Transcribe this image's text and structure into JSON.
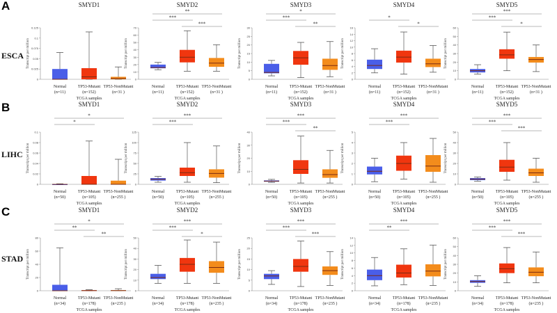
{
  "labels": {
    "ylabel": "Transcript per million",
    "xlabel": "TCGA samples",
    "groups": [
      "Normal",
      "TP53-Mutant",
      "TP53-NonMutant"
    ]
  },
  "colors": {
    "normal": "#4a5ee8",
    "mutant": "#f0360f",
    "nonmutant": "#f38c1c",
    "median": "#7a2a12",
    "whisker": "#555555",
    "line": "#777777"
  },
  "rows": [
    {
      "letter": "A",
      "cancer": "ESCA",
      "n": [
        "(n=11)",
        "(n=152)",
        "(n=31 )"
      ]
    },
    {
      "letter": "B",
      "cancer": "LIHC",
      "n": [
        "(n=50)",
        "(n=105)",
        "(n=255 )"
      ]
    },
    {
      "letter": "C",
      "cancer": "STAD",
      "n": [
        "(n=34)",
        "(n=178)",
        "(n=235 )"
      ]
    }
  ],
  "chart_data": [
    {
      "type": "box",
      "row": 0,
      "title": "SMYD1",
      "ylim": [
        0,
        0.125
      ],
      "ticks": [
        0,
        0.025,
        0.05,
        0.075,
        0.1,
        0.125
      ],
      "boxes": [
        [
          0,
          0,
          0,
          0.025,
          0.065
        ],
        [
          0,
          0,
          0.006,
          0.027,
          0.115
        ],
        [
          0,
          0,
          0.002,
          0.006,
          0.03
        ]
      ],
      "sig": []
    },
    {
      "type": "box",
      "row": 0,
      "title": "SMYD2",
      "ylim": [
        0,
        70
      ],
      "ticks": [
        0,
        10,
        20,
        30,
        40,
        50,
        60,
        70
      ],
      "boxes": [
        [
          13,
          15,
          16,
          20,
          23
        ],
        [
          11,
          23,
          30,
          40,
          66
        ],
        [
          11,
          17,
          22,
          29,
          47
        ]
      ],
      "sig": [
        [
          0,
          1,
          "***"
        ],
        [
          0,
          2,
          "**"
        ],
        [
          1,
          2,
          "***"
        ]
      ]
    },
    {
      "type": "box",
      "row": 0,
      "title": "SMYD3",
      "ylim": [
        0,
        30
      ],
      "ticks": [
        0,
        5,
        10,
        15,
        20,
        25,
        30
      ],
      "boxes": [
        [
          2,
          3.5,
          4,
          9,
          11
        ],
        [
          1,
          8.5,
          12.5,
          16.5,
          21.5
        ],
        [
          1.5,
          5.5,
          8,
          12,
          22
        ]
      ],
      "sig": [
        [
          0,
          1,
          "***"
        ],
        [
          0,
          2,
          "*"
        ],
        [
          1,
          2,
          "**"
        ]
      ]
    },
    {
      "type": "box",
      "row": 0,
      "title": "SMYD4",
      "ylim": [
        0,
        16
      ],
      "ticks": [
        0,
        2,
        4,
        6,
        8,
        10,
        12,
        14,
        16
      ],
      "boxes": [
        [
          2,
          3.2,
          4.3,
          6.1,
          9.5
        ],
        [
          1.6,
          5.2,
          6.9,
          8.9,
          14.7
        ],
        [
          2.2,
          3.8,
          4.8,
          6.4,
          10.5
        ]
      ],
      "sig": [
        [
          0,
          1,
          "*"
        ],
        [
          1,
          2,
          "*"
        ]
      ]
    },
    {
      "type": "box",
      "row": 0,
      "title": "SMYD5",
      "ylim": [
        0,
        60
      ],
      "ticks": [
        0,
        10,
        20,
        30,
        40,
        50,
        60
      ],
      "boxes": [
        [
          6,
          8,
          10,
          12,
          17
        ],
        [
          10,
          24,
          28.5,
          35,
          55
        ],
        [
          9,
          19.5,
          23,
          26,
          40
        ]
      ],
      "sig": [
        [
          0,
          1,
          "***"
        ],
        [
          0,
          2,
          "***"
        ],
        [
          1,
          2,
          "*"
        ]
      ]
    },
    {
      "type": "box",
      "row": 1,
      "title": "SMYD1",
      "ylim": [
        0,
        0.1
      ],
      "ticks": [
        0,
        0.02,
        0.04,
        0.06,
        0.08,
        0.1
      ],
      "boxes": [
        [
          0,
          0,
          0,
          0,
          0.001
        ],
        [
          0,
          0,
          0,
          0.016,
          0.083
        ],
        [
          0,
          0,
          0,
          0.007,
          0.048
        ]
      ],
      "sig": [
        [
          0,
          1,
          "*"
        ],
        [
          0,
          2,
          "*"
        ]
      ]
    },
    {
      "type": "box",
      "row": 1,
      "title": "SMYD2",
      "ylim": [
        0,
        125
      ],
      "ticks": [
        0,
        25,
        50,
        75,
        100,
        125
      ],
      "boxes": [
        [
          5,
          9,
          12,
          15,
          19
        ],
        [
          5,
          20,
          28,
          40,
          100
        ],
        [
          4,
          16,
          26,
          36,
          92
        ]
      ],
      "sig": [
        [
          0,
          1,
          "***"
        ],
        [
          0,
          2,
          "***"
        ]
      ]
    },
    {
      "type": "box",
      "row": 1,
      "title": "SMYD3",
      "ylim": [
        0,
        40
      ],
      "ticks": [
        0,
        10,
        20,
        30,
        40
      ],
      "boxes": [
        [
          1.5,
          2,
          2.5,
          3,
          3.8
        ],
        [
          1,
          8,
          11.5,
          18.5,
          37
        ],
        [
          1,
          5,
          7.5,
          11.5,
          26
        ]
      ],
      "sig": [
        [
          0,
          1,
          "***"
        ],
        [
          0,
          2,
          "***"
        ],
        [
          1,
          2,
          "**"
        ]
      ]
    },
    {
      "type": "box",
      "row": 1,
      "title": "SMYD4",
      "ylim": [
        0,
        5
      ],
      "ticks": [
        0,
        1,
        2,
        3,
        4,
        5
      ],
      "boxes": [
        [
          0.25,
          0.95,
          1.25,
          1.7,
          2.5
        ],
        [
          0.5,
          1.3,
          2,
          2.75,
          4
        ],
        [
          0.2,
          1.2,
          1.75,
          2.8,
          4.4
        ]
      ],
      "sig": [
        [
          0,
          1,
          "***"
        ],
        [
          0,
          2,
          "***"
        ]
      ]
    },
    {
      "type": "box",
      "row": 1,
      "title": "SMYD5",
      "ylim": [
        0,
        50
      ],
      "ticks": [
        0,
        10,
        20,
        30,
        40,
        50
      ],
      "boxes": [
        [
          3,
          4,
          5,
          6,
          7
        ],
        [
          4,
          12,
          16.5,
          23.5,
          40
        ],
        [
          2,
          8,
          11,
          15,
          25
        ]
      ],
      "sig": [
        [
          0,
          1,
          "***"
        ],
        [
          0,
          2,
          "***"
        ],
        [
          1,
          2,
          "***"
        ]
      ]
    },
    {
      "type": "box",
      "row": 2,
      "title": "SMYD1",
      "ylim": [
        0,
        80
      ],
      "ticks": [
        0,
        20,
        40,
        60,
        80
      ],
      "boxes": [
        [
          0,
          0,
          0,
          9,
          65
        ],
        [
          0,
          0,
          0.3,
          0.8,
          1.5
        ],
        [
          0,
          0,
          0.3,
          0.8,
          3
        ]
      ],
      "sig": [
        [
          0,
          1,
          "**"
        ],
        [
          0,
          2,
          "*"
        ],
        [
          1,
          2,
          "**"
        ]
      ]
    },
    {
      "type": "box",
      "row": 2,
      "title": "SMYD2",
      "ylim": [
        0,
        50
      ],
      "ticks": [
        0,
        10,
        20,
        30,
        40,
        50
      ],
      "boxes": [
        [
          7,
          11,
          12.5,
          16,
          24
        ],
        [
          7,
          18,
          25,
          31,
          48
        ],
        [
          7,
          17,
          22,
          28,
          46
        ]
      ],
      "sig": [
        [
          0,
          1,
          "***"
        ],
        [
          0,
          2,
          "***"
        ],
        [
          1,
          2,
          "*"
        ]
      ]
    },
    {
      "type": "box",
      "row": 2,
      "title": "SMYD3",
      "ylim": [
        0,
        25
      ],
      "ticks": [
        0,
        5,
        10,
        15,
        20,
        25
      ],
      "boxes": [
        [
          3,
          5.5,
          7,
          8,
          9.5
        ],
        [
          2,
          9,
          11.5,
          15,
          23.5
        ],
        [
          2.5,
          7.5,
          9.5,
          11.5,
          18.5
        ]
      ],
      "sig": [
        [
          0,
          1,
          "***"
        ],
        [
          0,
          2,
          "***"
        ],
        [
          1,
          2,
          "***"
        ]
      ]
    },
    {
      "type": "box",
      "row": 2,
      "title": "SMYD4",
      "ylim": [
        0,
        14
      ],
      "ticks": [
        0,
        2,
        4,
        6,
        8,
        10,
        12,
        14
      ],
      "boxes": [
        [
          1.3,
          2.8,
          4,
          5.6,
          8.8
        ],
        [
          1.6,
          3.5,
          4.7,
          6.9,
          11.1
        ],
        [
          1.4,
          3.8,
          5.2,
          7,
          12.1
        ]
      ],
      "sig": [
        [
          0,
          1,
          "**"
        ],
        [
          0,
          2,
          "***"
        ]
      ]
    },
    {
      "type": "box",
      "row": 2,
      "title": "SMYD5",
      "ylim": [
        0,
        60
      ],
      "ticks": [
        0,
        10,
        20,
        30,
        40,
        50,
        60
      ],
      "boxes": [
        [
          5,
          9,
          10.5,
          12,
          17
        ],
        [
          9,
          20,
          25,
          31,
          49
        ],
        [
          9,
          16.5,
          21,
          26.5,
          44
        ]
      ],
      "sig": [
        [
          0,
          1,
          "***"
        ],
        [
          0,
          2,
          "***"
        ],
        [
          1,
          2,
          "***"
        ]
      ]
    }
  ]
}
